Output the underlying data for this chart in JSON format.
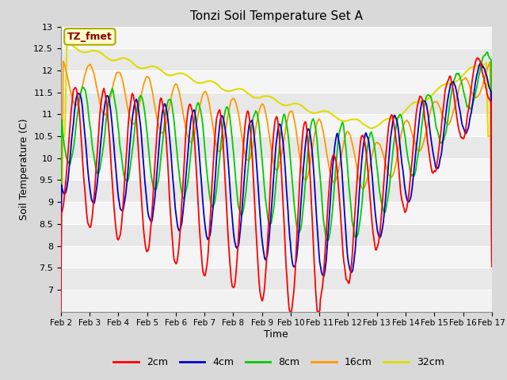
{
  "title": "Tonzi Soil Temperature Set A",
  "xlabel": "Time",
  "ylabel": "Soil Temperature (C)",
  "ylim": [
    6.5,
    13.0
  ],
  "yticks": [
    7.0,
    7.5,
    8.0,
    8.5,
    9.0,
    9.5,
    10.0,
    10.5,
    11.0,
    11.5,
    12.0,
    12.5,
    13.0
  ],
  "xtick_labels": [
    "Feb 2",
    "Feb 3",
    "Feb 4",
    "Feb 5",
    "Feb 6",
    "Feb 7",
    "Feb 8",
    "Feb 9",
    "Feb 10",
    "Feb 11",
    "Feb 12",
    "Feb 13",
    "Feb 14",
    "Feb 15",
    "Feb 16",
    "Feb 17"
  ],
  "legend_entries": [
    "2cm",
    "4cm",
    "8cm",
    "16cm",
    "32cm"
  ],
  "legend_colors": [
    "#ff0000",
    "#0000cc",
    "#00cc00",
    "#ff9900",
    "#dddd00"
  ],
  "annotation_text": "TZ_fmet",
  "annotation_bg": "#ffffcc",
  "annotation_fg": "#880000",
  "annotation_edge": "#aaaa00",
  "plot_bg_light": "#f0f0f0",
  "plot_bg_dark": "#e0e0e0",
  "grid_color": "#ffffff",
  "figsize": [
    6.4,
    4.8
  ],
  "dpi": 100
}
